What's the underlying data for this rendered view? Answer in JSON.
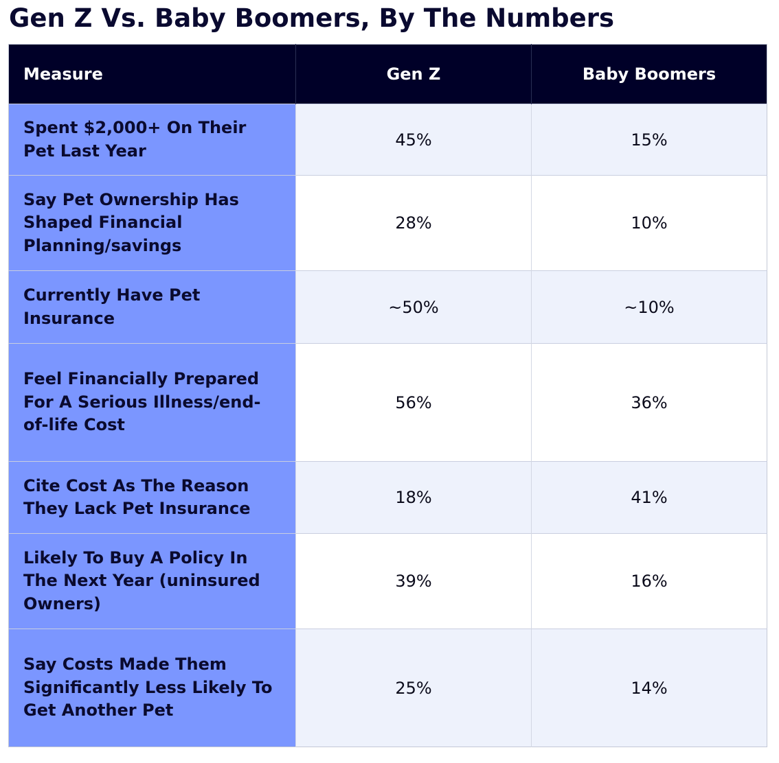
{
  "title": "Gen Z Vs. Baby Boomers, By The Numbers",
  "chart_data": {
    "type": "table",
    "title": "Gen Z Vs. Baby Boomers, By The Numbers",
    "columns": [
      "Measure",
      "Gen Z",
      "Baby Boomers"
    ],
    "rows": [
      {
        "measure": "Spent $2,000+ On Their Pet Last Year",
        "gen_z": "45%",
        "boomers": "15%"
      },
      {
        "measure": "Say Pet Ownership Has Shaped Financial Planning/savings",
        "gen_z": "28%",
        "boomers": "10%"
      },
      {
        "measure": "Currently Have Pet Insurance",
        "gen_z": "~50%",
        "boomers": "~10%"
      },
      {
        "measure": "Feel Financially Prepared For A Serious Illness/end-of-life Cost",
        "gen_z": "56%",
        "boomers": "36%"
      },
      {
        "measure": "Cite Cost As The Reason They Lack Pet Insurance",
        "gen_z": "18%",
        "boomers": "41%"
      },
      {
        "measure": "Likely To Buy A Policy In The Next Year (uninsured Owners)",
        "gen_z": "39%",
        "boomers": "16%"
      },
      {
        "measure": "Say Costs Made Them Significantly Less Likely To Get Another Pet",
        "gen_z": "25%",
        "boomers": "14%"
      }
    ]
  },
  "colors": {
    "header_bg": "#000028",
    "label_bg": "#7b96ff",
    "stripe_bg": "#eef2fc",
    "title_text": "#0a0a30"
  }
}
